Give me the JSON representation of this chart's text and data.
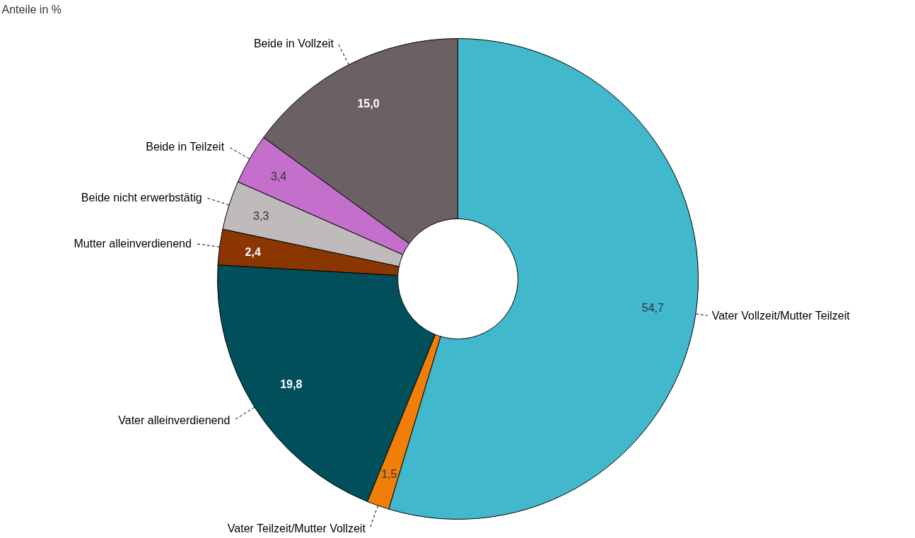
{
  "chart_data": {
    "type": "donut",
    "title": "Anteile in %",
    "categories": [
      "Vater Vollzeit/Mutter Teilzeit",
      "Vater Teilzeit/Mutter Vollzeit",
      "Vater alleinverdienend",
      "Mutter alleinverdienend",
      "Beide nicht erwerbstätig",
      "Beide in Teilzeit",
      "Beide in Vollzeit"
    ],
    "values": [
      54.7,
      1.5,
      19.8,
      2.4,
      3.3,
      3.4,
      15.0
    ],
    "value_labels": [
      "54,7",
      "1,5",
      "19,8",
      "2,4",
      "3,3",
      "3,4",
      "15,0"
    ],
    "colors": [
      "#42b8cc",
      "#f07f09",
      "#004f5b",
      "#8b3500",
      "#bfbbbb",
      "#c36fcb",
      "#6b6063"
    ]
  }
}
